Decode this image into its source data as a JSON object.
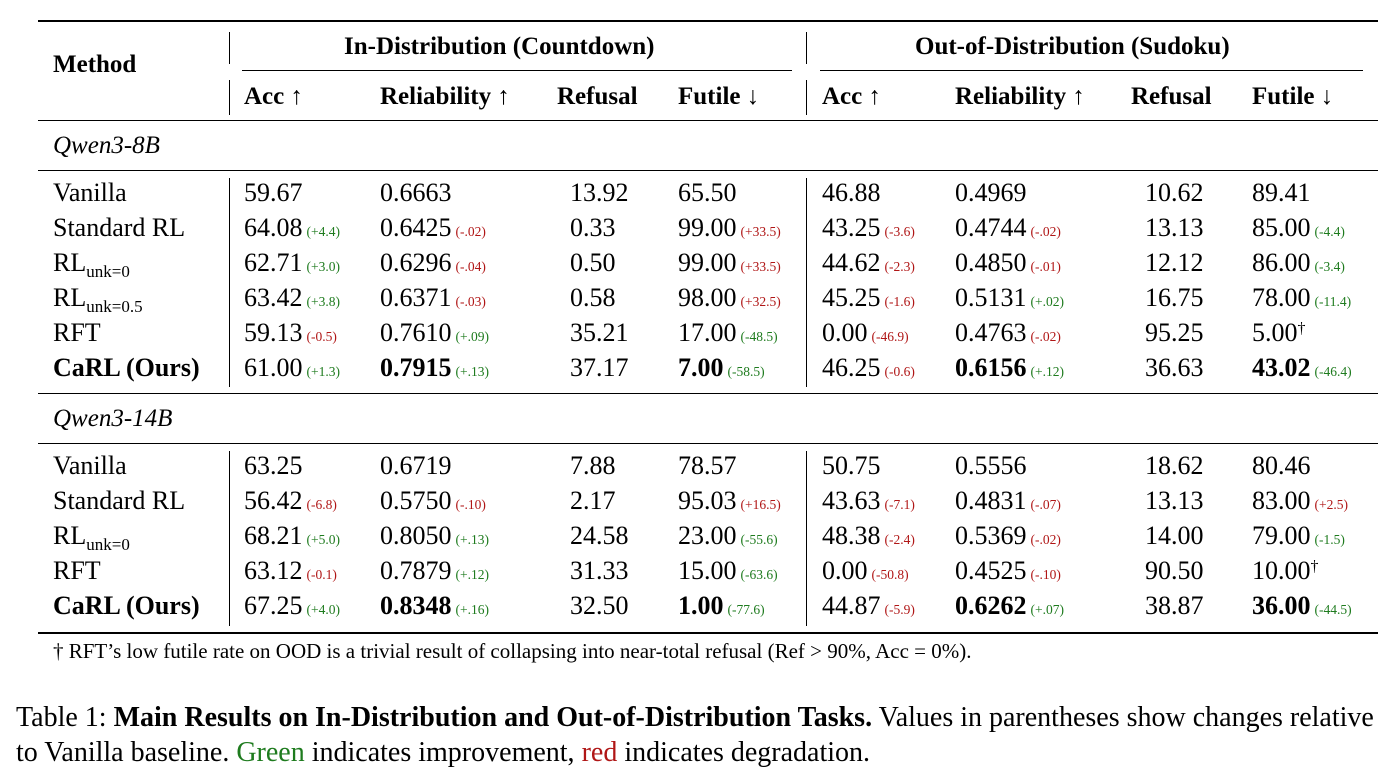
{
  "header": {
    "method": "Method",
    "group_in": "In-Distribution (Countdown)",
    "group_out": "Out-of-Distribution (Sudoku)",
    "col_acc": "Acc ↑",
    "col_reliability": "Reliability ↑",
    "col_refusal": "Refusal",
    "col_futile": "Futile ↓"
  },
  "sections": [
    {
      "title": "Qwen3-8B",
      "rows": [
        {
          "name": "Vanilla",
          "sub": "",
          "bold": false,
          "in": [
            [
              "59.67",
              ""
            ],
            [
              "0.6663",
              ""
            ],
            [
              "13.92",
              ""
            ],
            [
              "65.50",
              ""
            ]
          ],
          "out": [
            [
              "46.88",
              ""
            ],
            [
              "0.4969",
              ""
            ],
            [
              "10.62",
              ""
            ],
            [
              "89.41",
              ""
            ]
          ]
        },
        {
          "name": "Standard RL",
          "sub": "",
          "bold": false,
          "in": [
            [
              "64.08",
              "(+4.4)"
            ],
            [
              "0.6425",
              "(-.02)"
            ],
            [
              "0.33",
              ""
            ],
            [
              "99.00",
              "(+33.5)"
            ]
          ],
          "out": [
            [
              "43.25",
              "(-3.6)"
            ],
            [
              "0.4744",
              "(-.02)"
            ],
            [
              "13.13",
              ""
            ],
            [
              "85.00",
              "(-4.4)"
            ]
          ]
        },
        {
          "name": "RL",
          "sub": "unk=0",
          "bold": false,
          "in": [
            [
              "62.71",
              "(+3.0)"
            ],
            [
              "0.6296",
              "(-.04)"
            ],
            [
              "0.50",
              ""
            ],
            [
              "99.00",
              "(+33.5)"
            ]
          ],
          "out": [
            [
              "44.62",
              "(-2.3)"
            ],
            [
              "0.4850",
              "(-.01)"
            ],
            [
              "12.12",
              ""
            ],
            [
              "86.00",
              "(-3.4)"
            ]
          ]
        },
        {
          "name": "RL",
          "sub": "unk=0.5",
          "bold": false,
          "in": [
            [
              "63.42",
              "(+3.8)"
            ],
            [
              "0.6371",
              "(-.03)"
            ],
            [
              "0.58",
              ""
            ],
            [
              "98.00",
              "(+32.5)"
            ]
          ],
          "out": [
            [
              "45.25",
              "(-1.6)"
            ],
            [
              "0.5131",
              "(+.02)"
            ],
            [
              "16.75",
              ""
            ],
            [
              "78.00",
              "(-11.4)"
            ]
          ]
        },
        {
          "name": "RFT",
          "sub": "",
          "bold": false,
          "in": [
            [
              "59.13",
              "(-0.5)"
            ],
            [
              "0.7610",
              "(+.09)"
            ],
            [
              "35.21",
              ""
            ],
            [
              "17.00",
              "(-48.5)"
            ]
          ],
          "out": [
            [
              "0.00",
              "(-46.9)"
            ],
            [
              "0.4763",
              "(-.02)"
            ],
            [
              "95.25",
              ""
            ],
            [
              "5.00†",
              ""
            ]
          ]
        },
        {
          "name": "CaRL (Ours)",
          "sub": "",
          "bold": true,
          "in": [
            [
              "61.00",
              "(+1.3)"
            ],
            [
              "0.7915",
              "(+.13)"
            ],
            [
              "37.17",
              ""
            ],
            [
              "7.00",
              "(-58.5)"
            ]
          ],
          "out": [
            [
              "46.25",
              "(-0.6)"
            ],
            [
              "0.6156",
              "(+.12)"
            ],
            [
              "36.63",
              ""
            ],
            [
              "43.02",
              "(-46.4)"
            ]
          ]
        }
      ]
    },
    {
      "title": "Qwen3-14B",
      "rows": [
        {
          "name": "Vanilla",
          "sub": "",
          "bold": false,
          "in": [
            [
              "63.25",
              ""
            ],
            [
              "0.6719",
              ""
            ],
            [
              "7.88",
              ""
            ],
            [
              "78.57",
              ""
            ]
          ],
          "out": [
            [
              "50.75",
              ""
            ],
            [
              "0.5556",
              ""
            ],
            [
              "18.62",
              ""
            ],
            [
              "80.46",
              ""
            ]
          ]
        },
        {
          "name": "Standard RL",
          "sub": "",
          "bold": false,
          "in": [
            [
              "56.42",
              "(-6.8)"
            ],
            [
              "0.5750",
              "(-.10)"
            ],
            [
              "2.17",
              ""
            ],
            [
              "95.03",
              "(+16.5)"
            ]
          ],
          "out": [
            [
              "43.63",
              "(-7.1)"
            ],
            [
              "0.4831",
              "(-.07)"
            ],
            [
              "13.13",
              ""
            ],
            [
              "83.00",
              "(+2.5)"
            ]
          ]
        },
        {
          "name": "RL",
          "sub": "unk=0",
          "bold": false,
          "in": [
            [
              "68.21",
              "(+5.0)"
            ],
            [
              "0.8050",
              "(+.13)"
            ],
            [
              "24.58",
              ""
            ],
            [
              "23.00",
              "(-55.6)"
            ]
          ],
          "out": [
            [
              "48.38",
              "(-2.4)"
            ],
            [
              "0.5369",
              "(-.02)"
            ],
            [
              "14.00",
              ""
            ],
            [
              "79.00",
              "(-1.5)"
            ]
          ]
        },
        {
          "name": "RFT",
          "sub": "",
          "bold": false,
          "in": [
            [
              "63.12",
              "(-0.1)"
            ],
            [
              "0.7879",
              "(+.12)"
            ],
            [
              "31.33",
              ""
            ],
            [
              "15.00",
              "(-63.6)"
            ]
          ],
          "out": [
            [
              "0.00",
              "(-50.8)"
            ],
            [
              "0.4525",
              "(-.10)"
            ],
            [
              "90.50",
              ""
            ],
            [
              "10.00†",
              ""
            ]
          ]
        },
        {
          "name": "CaRL (Ours)",
          "sub": "",
          "bold": true,
          "in": [
            [
              "67.25",
              "(+4.0)"
            ],
            [
              "0.8348",
              "(+.16)"
            ],
            [
              "32.50",
              ""
            ],
            [
              "1.00",
              "(-77.6)"
            ]
          ],
          "out": [
            [
              "44.87",
              "(-5.9)"
            ],
            [
              "0.6262",
              "(+.07)"
            ],
            [
              "38.87",
              ""
            ],
            [
              "36.00",
              "(-44.5)"
            ]
          ]
        }
      ]
    }
  ],
  "bold_cells": [
    [
      [],
      [
        1,
        3
      ],
      [],
      [
        1,
        3
      ]
    ],
    [
      [],
      [
        1,
        3
      ],
      [],
      [
        1,
        3
      ]
    ]
  ],
  "footnote": "† RFT’s low futile rate on OOD is a trivial result of collapsing into near-total refusal (Ref > 90%, Acc = 0%).",
  "caption": {
    "prefix": "Table 1: ",
    "bold": "Main Results on In-Distribution and Out-of-Distribution Tasks.",
    "text1": " Values in parentheses show changes relative to Vanilla baseline. ",
    "green_word": "Green",
    "text2": " indicates improvement, ",
    "red_word": "red",
    "text3": " indicates degradation."
  },
  "colors": {
    "improve": "#1e7b1e",
    "degrade": "#b01616"
  }
}
